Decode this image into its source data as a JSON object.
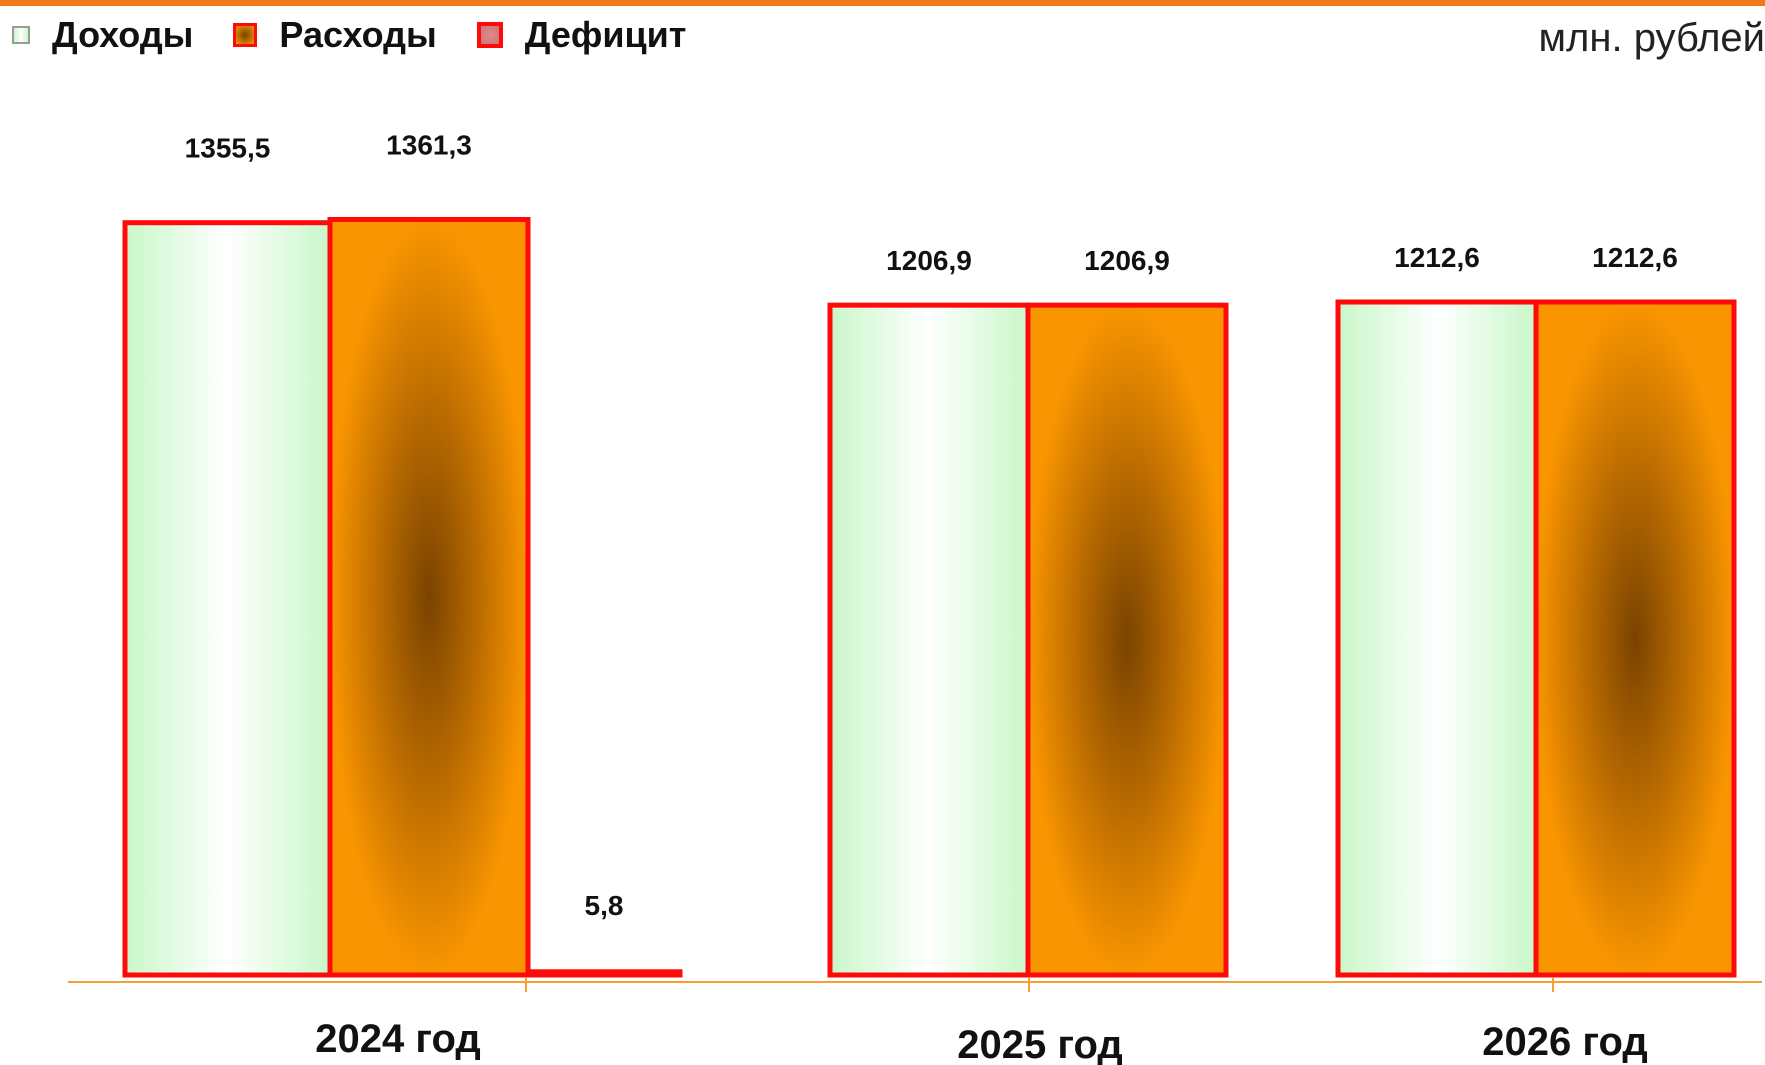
{
  "units_label": "млн. рублей",
  "chart_data": {
    "type": "bar",
    "title": "",
    "xlabel": "",
    "ylabel": "",
    "categories": [
      "2024 год",
      "2025 год",
      "2026 год"
    ],
    "series": [
      {
        "name": "Доходы",
        "values": [
          1355.5,
          1206.9,
          1212.6
        ],
        "labels": [
          "1355,5",
          "1206,9",
          "1212,6"
        ]
      },
      {
        "name": "Расходы",
        "values": [
          1361.3,
          1206.9,
          1212.6
        ],
        "labels": [
          "1361,3",
          "1206,9",
          "1212,6"
        ]
      },
      {
        "name": "Дефицит",
        "values": [
          5.8,
          null,
          null
        ],
        "labels": [
          "5,8",
          null,
          null
        ]
      }
    ],
    "legend_position": "top-left",
    "grid": false,
    "colors": {
      "income": "#c9f7c9",
      "expense": "#f99500",
      "deficit": "#d08080",
      "border": "#ff0a0a",
      "axis": "#f7a030"
    }
  }
}
